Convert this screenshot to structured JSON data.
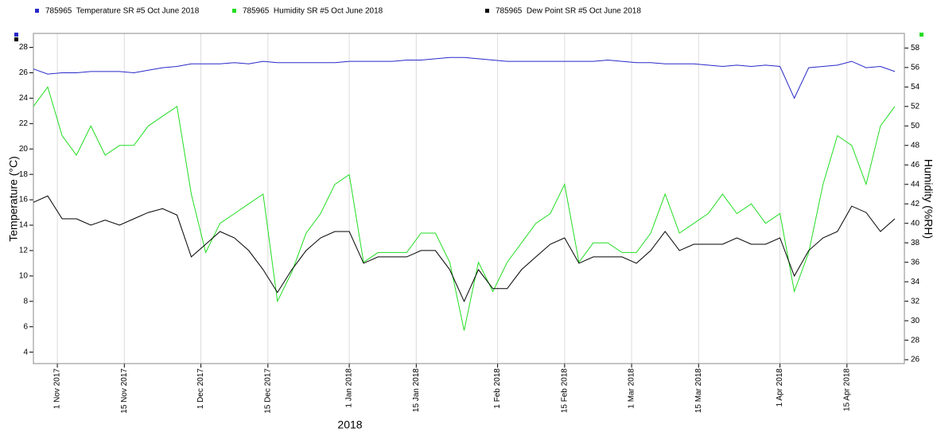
{
  "chart_data": {
    "type": "line",
    "x": [
      "2017-10-27",
      "2017-10-30",
      "2017-11-02",
      "2017-11-05",
      "2017-11-08",
      "2017-11-11",
      "2017-11-14",
      "2017-11-17",
      "2017-11-20",
      "2017-11-23",
      "2017-11-26",
      "2017-11-29",
      "2017-12-02",
      "2017-12-05",
      "2017-12-08",
      "2017-12-11",
      "2017-12-14",
      "2017-12-17",
      "2017-12-20",
      "2017-12-23",
      "2017-12-26",
      "2017-12-29",
      "2018-01-01",
      "2018-01-04",
      "2018-01-07",
      "2018-01-10",
      "2018-01-13",
      "2018-01-16",
      "2018-01-19",
      "2018-01-22",
      "2018-01-25",
      "2018-01-28",
      "2018-01-31",
      "2018-02-03",
      "2018-02-06",
      "2018-02-09",
      "2018-02-12",
      "2018-02-15",
      "2018-02-18",
      "2018-02-21",
      "2018-02-24",
      "2018-02-27",
      "2018-03-02",
      "2018-03-05",
      "2018-03-08",
      "2018-03-11",
      "2018-03-14",
      "2018-03-17",
      "2018-03-20",
      "2018-03-23",
      "2018-03-26",
      "2018-03-29",
      "2018-04-01",
      "2018-04-04",
      "2018-04-07",
      "2018-04-10",
      "2018-04-13",
      "2018-04-16",
      "2018-04-19",
      "2018-04-22",
      "2018-04-25"
    ],
    "series": [
      {
        "name": "785965  Temperature SR #5 Oct June 2018",
        "color": "#2828c8",
        "axis": "y",
        "values": [
          26.3,
          25.9,
          26.0,
          26.0,
          26.1,
          26.1,
          26.1,
          26.0,
          26.2,
          26.4,
          26.5,
          26.7,
          26.7,
          26.7,
          26.8,
          26.7,
          26.9,
          26.8,
          26.8,
          26.8,
          26.8,
          26.8,
          26.9,
          26.9,
          26.9,
          26.9,
          27.0,
          27.0,
          27.1,
          27.2,
          27.2,
          27.1,
          27.0,
          26.9,
          26.9,
          26.9,
          26.9,
          26.9,
          26.9,
          26.9,
          27.0,
          26.9,
          26.8,
          26.8,
          26.7,
          26.7,
          26.7,
          26.6,
          26.5,
          26.6,
          26.5,
          26.6,
          26.5,
          24.0,
          26.4,
          26.5,
          26.6,
          26.9,
          26.4,
          26.5,
          26.1
        ]
      },
      {
        "name": "785965  Humidity SR #5 Oct June 2018",
        "color": "#22dd22",
        "axis": "y2",
        "values": [
          52,
          54,
          49,
          47,
          50,
          47,
          48,
          48,
          50,
          51,
          52,
          43,
          37,
          40,
          41,
          42,
          43,
          32,
          35,
          39,
          41,
          44,
          45,
          36,
          37,
          37,
          37,
          39,
          39,
          36,
          29,
          36,
          33,
          36,
          38,
          40,
          41,
          44,
          36,
          38,
          38,
          37,
          37,
          39,
          43,
          39,
          40,
          41,
          43,
          41,
          42,
          40,
          41,
          33,
          37,
          44,
          49,
          48,
          44,
          50,
          52
        ]
      },
      {
        "name": "785965  Dew Point SR #5 Oct June 2018",
        "color": "#000000",
        "axis": "y",
        "values": [
          15.8,
          16.3,
          14.5,
          14.5,
          14.0,
          14.4,
          14.0,
          14.5,
          15.0,
          15.3,
          14.8,
          11.5,
          12.5,
          13.5,
          13.0,
          12.0,
          10.5,
          8.7,
          10.5,
          12.0,
          13.0,
          13.5,
          13.5,
          11.0,
          11.5,
          11.5,
          11.5,
          12.0,
          12.0,
          10.5,
          8.0,
          10.5,
          9.0,
          9.0,
          10.5,
          11.5,
          12.5,
          13.0,
          11.0,
          11.5,
          11.5,
          11.5,
          11.0,
          12.0,
          13.5,
          12.0,
          12.5,
          12.5,
          12.5,
          13.0,
          12.5,
          12.5,
          13.0,
          10.0,
          12.0,
          13.0,
          13.5,
          15.5,
          15.0,
          13.5,
          14.5
        ]
      }
    ],
    "xlim": [
      "2017-10-27",
      "2018-04-27"
    ],
    "xticks": [
      {
        "value": "2017-11-01",
        "label": "1 Nov 2017"
      },
      {
        "value": "2017-11-15",
        "label": "15 Nov 2017"
      },
      {
        "value": "2017-12-01",
        "label": "1 Dec 2017"
      },
      {
        "value": "2017-12-15",
        "label": "15 Dec 2017"
      },
      {
        "value": "2018-01-01",
        "label": "1 Jan 2018"
      },
      {
        "value": "2018-01-15",
        "label": "15 Jan 2018"
      },
      {
        "value": "2018-02-01",
        "label": "1 Feb 2018"
      },
      {
        "value": "2018-02-15",
        "label": "15 Feb 2018"
      },
      {
        "value": "2018-03-01",
        "label": "1 Mar 2018"
      },
      {
        "value": "2018-03-15",
        "label": "15 Mar 2018"
      },
      {
        "value": "2018-04-01",
        "label": "1 Apr 2018"
      },
      {
        "value": "2018-04-15",
        "label": "15 Apr 2018"
      }
    ],
    "xlabel": "2018",
    "ylabel": "Temperature (°C)",
    "y2label": "Humidity (%RH)",
    "ylim": [
      3.1,
      29.1
    ],
    "yticks": [
      4,
      6,
      8,
      10,
      12,
      14,
      16,
      18,
      20,
      22,
      24,
      26,
      28
    ],
    "y2lim": [
      25.6,
      59.5
    ],
    "y2ticks": [
      26,
      28,
      30,
      32,
      34,
      36,
      38,
      40,
      42,
      44,
      46,
      48,
      50,
      52,
      54,
      56,
      58
    ],
    "grid": "x"
  }
}
